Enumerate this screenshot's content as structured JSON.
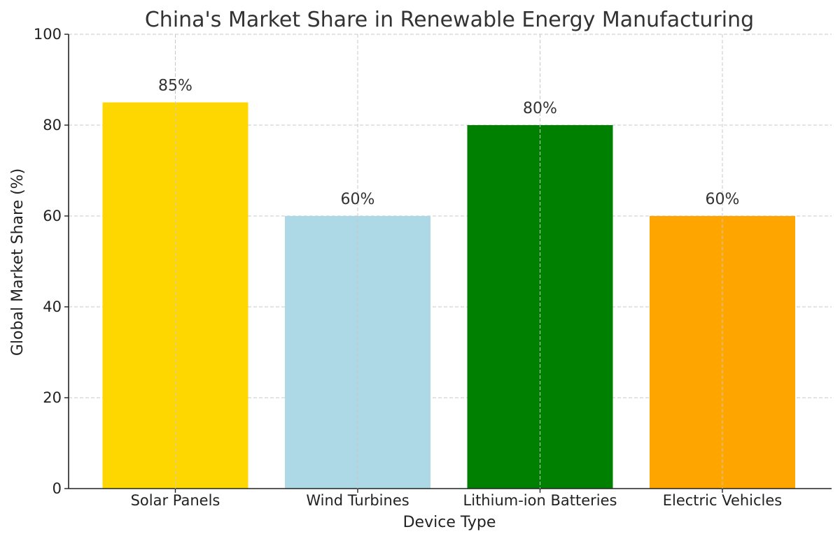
{
  "chart_data": {
    "type": "bar",
    "title": "China's Market Share in Renewable Energy Manufacturing",
    "xlabel": "Device Type",
    "ylabel": "Global Market Share (%)",
    "categories": [
      "Solar Panels",
      "Wind Turbines",
      "Lithium-ion Batteries",
      "Electric Vehicles"
    ],
    "values": [
      85,
      60,
      80,
      60
    ],
    "data_labels": [
      "85%",
      "60%",
      "80%",
      "60%"
    ],
    "bar_colors": [
      "#ffd700",
      "#add8e6",
      "#008000",
      "#ffa500"
    ],
    "ylim": [
      0,
      100
    ],
    "yticks": [
      0,
      20,
      40,
      60,
      80,
      100
    ],
    "ytick_labels": [
      "0",
      "20",
      "40",
      "60",
      "80",
      "100"
    ],
    "grid": true,
    "legend": false
  }
}
